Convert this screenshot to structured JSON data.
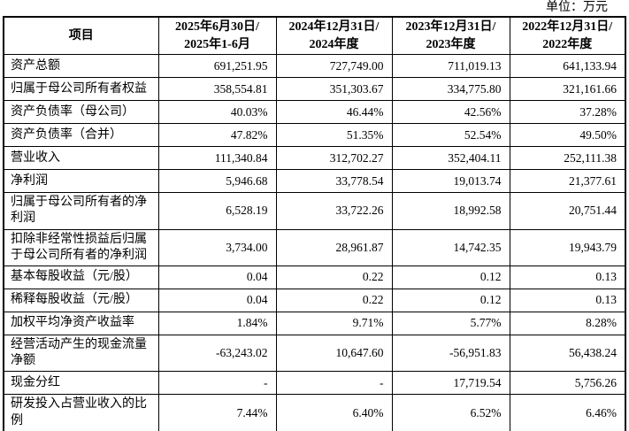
{
  "unit_label": "单位：万元",
  "table": {
    "columns": [
      "项目",
      "2025年6月30日/\n2025年1-6月",
      "2024年12月31日/\n2024年度",
      "2023年12月31日/\n2023年度",
      "2022年12月31日/\n2022年度"
    ],
    "rows": [
      {
        "label": "资产总额",
        "values": [
          "691,251.95",
          "727,749.00",
          "711,019.13",
          "641,133.94"
        ]
      },
      {
        "label": "归属于母公司所有者权益",
        "values": [
          "358,554.81",
          "351,303.67",
          "334,775.80",
          "321,161.66"
        ]
      },
      {
        "label": "资产负债率（母公司）",
        "values": [
          "40.03%",
          "46.44%",
          "42.56%",
          "37.28%"
        ]
      },
      {
        "label": "资产负债率（合并）",
        "values": [
          "47.82%",
          "51.35%",
          "52.54%",
          "49.50%"
        ]
      },
      {
        "label": "营业收入",
        "values": [
          "111,340.84",
          "312,702.27",
          "352,404.11",
          "252,111.38"
        ]
      },
      {
        "label": "净利润",
        "values": [
          "5,946.68",
          "33,778.54",
          "19,013.74",
          "21,377.61"
        ]
      },
      {
        "label": "归属于母公司所有者的净利润",
        "values": [
          "6,528.19",
          "33,722.26",
          "18,992.58",
          "20,751.44"
        ]
      },
      {
        "label": "扣除非经常性损益后归属于母公司所有者的净利润",
        "values": [
          "3,734.00",
          "28,961.87",
          "14,742.35",
          "19,943.79"
        ]
      },
      {
        "label": "基本每股收益（元/股）",
        "values": [
          "0.04",
          "0.22",
          "0.12",
          "0.13"
        ]
      },
      {
        "label": "稀释每股收益（元/股）",
        "values": [
          "0.04",
          "0.22",
          "0.12",
          "0.13"
        ]
      },
      {
        "label": "加权平均净资产收益率",
        "values": [
          "1.84%",
          "9.71%",
          "5.77%",
          "8.28%"
        ]
      },
      {
        "label": "经营活动产生的现金流量净额",
        "values": [
          "-63,243.02",
          "10,647.60",
          "-56,951.83",
          "56,438.24"
        ]
      },
      {
        "label": "现金分红",
        "values": [
          "-",
          "-",
          "17,719.54",
          "5,756.26"
        ]
      },
      {
        "label": "研发投入占营业收入的比例",
        "values": [
          "7.44%",
          "6.40%",
          "6.52%",
          "6.46%"
        ]
      }
    ]
  }
}
